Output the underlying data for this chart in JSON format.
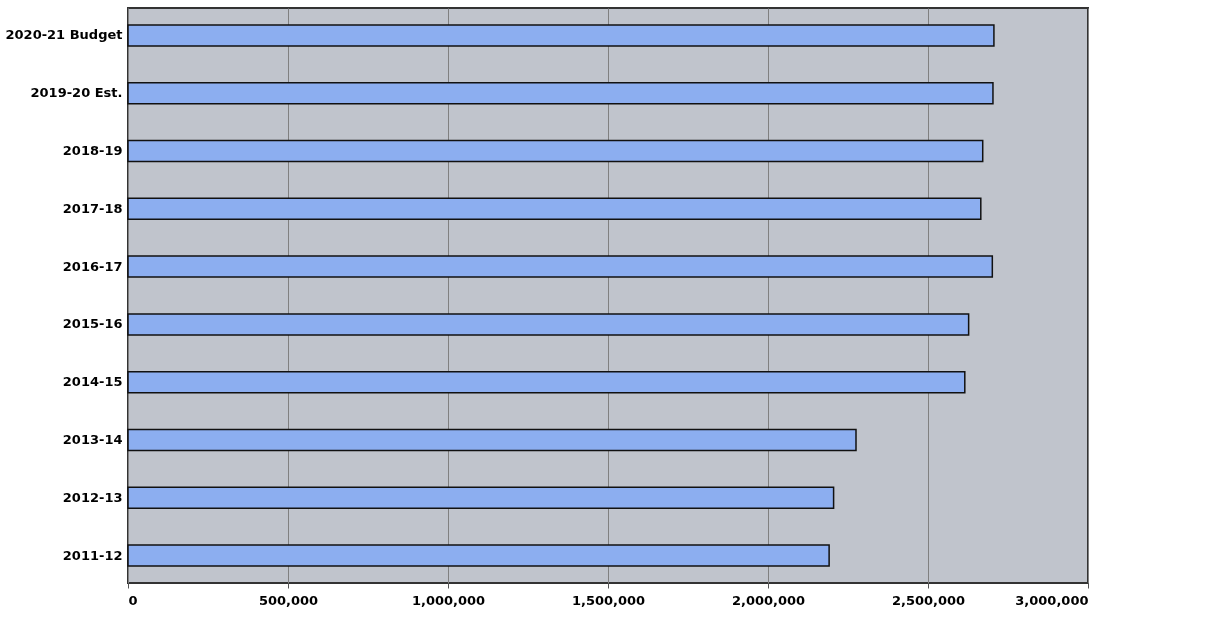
{
  "chart_data": {
    "type": "bar",
    "orientation": "horizontal",
    "categories": [
      "2020-21 Budget",
      "2019-20 Est.",
      "2018-19",
      "2017-18",
      "2016-17",
      "2015-16",
      "2014-15",
      "2013-14",
      "2012-13",
      "2011-12"
    ],
    "values": [
      2706000,
      2703000,
      2671000,
      2665000,
      2701000,
      2627000,
      2615000,
      2275000,
      2205000,
      2191000
    ],
    "color": "#8caef0",
    "xlim": [
      0,
      3000000
    ],
    "xticks": [
      {
        "value": 0,
        "label": "0"
      },
      {
        "value": 500000,
        "label": "500,000"
      },
      {
        "value": 1000000,
        "label": "1,000,000"
      },
      {
        "value": 1500000,
        "label": "1,500,000"
      },
      {
        "value": 2000000,
        "label": "2,000,000"
      },
      {
        "value": 2500000,
        "label": "2,500,000"
      },
      {
        "value": 3000000,
        "label": "3,000,000"
      }
    ],
    "grid": "x"
  }
}
